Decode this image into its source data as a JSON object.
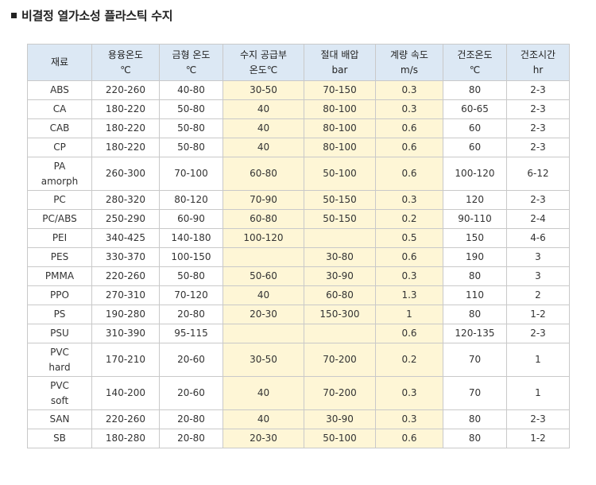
{
  "title": "비결정 열가소성 플라스틱 수지",
  "highlight_color": "#fef6d6",
  "header_color": "#dce8f4",
  "headers": [
    [
      "재료"
    ],
    [
      "용융온도",
      "℃"
    ],
    [
      "금형 온도",
      "℃"
    ],
    [
      "수지 공급부",
      "온도℃"
    ],
    [
      "절대 배압",
      "bar"
    ],
    [
      "계량 속도",
      "m/s"
    ],
    [
      "건조온도",
      "℃"
    ],
    [
      "건조시간",
      "hr"
    ]
  ],
  "rows": [
    [
      [
        "ABS"
      ],
      "220-260",
      "40-80",
      "30-50",
      "70-150",
      "0.3",
      "80",
      "2-3"
    ],
    [
      [
        "CA"
      ],
      "180-220",
      "50-80",
      "40",
      "80-100",
      "0.3",
      "60-65",
      "2-3"
    ],
    [
      [
        "CAB"
      ],
      "180-220",
      "50-80",
      "40",
      "80-100",
      "0.6",
      "60",
      "2-3"
    ],
    [
      [
        "CP"
      ],
      "180-220",
      "50-80",
      "40",
      "80-100",
      "0.6",
      "60",
      "2-3"
    ],
    [
      [
        "PA",
        "amorph"
      ],
      "260-300",
      "70-100",
      "60-80",
      "50-100",
      "0.6",
      "100-120",
      "6-12"
    ],
    [
      [
        "PC"
      ],
      "280-320",
      "80-120",
      "70-90",
      "50-150",
      "0.3",
      "120",
      "2-3"
    ],
    [
      [
        "PC/ABS"
      ],
      "250-290",
      "60-90",
      "60-80",
      "50-150",
      "0.2",
      "90-110",
      "2-4"
    ],
    [
      [
        "PEI"
      ],
      "340-425",
      "140-180",
      "100-120",
      "",
      "0.5",
      "150",
      "4-6"
    ],
    [
      [
        "PES"
      ],
      "330-370",
      "100-150",
      "",
      "30-80",
      "0.6",
      "190",
      "3"
    ],
    [
      [
        "PMMA"
      ],
      "220-260",
      "50-80",
      "50-60",
      "30-90",
      "0.3",
      "80",
      "3"
    ],
    [
      [
        "PPO"
      ],
      "270-310",
      "70-120",
      "40",
      "60-80",
      "1.3",
      "110",
      "2"
    ],
    [
      [
        "PS"
      ],
      "190-280",
      "20-80",
      "20-30",
      "150-300",
      "1",
      "80",
      "1-2"
    ],
    [
      [
        "PSU"
      ],
      "310-390",
      "95-115",
      "",
      "",
      "0.6",
      "120-135",
      "2-3"
    ],
    [
      [
        "PVC",
        "hard"
      ],
      "170-210",
      "20-60",
      "30-50",
      "70-200",
      "0.2",
      "70",
      "1"
    ],
    [
      [
        "PVC",
        "soft"
      ],
      "140-200",
      "20-60",
      "40",
      "70-200",
      "0.3",
      "70",
      "1"
    ],
    [
      [
        "SAN"
      ],
      "220-260",
      "20-80",
      "40",
      "30-90",
      "0.3",
      "80",
      "2-3"
    ],
    [
      [
        "SB"
      ],
      "180-280",
      "20-80",
      "20-30",
      "50-100",
      "0.6",
      "80",
      "1-2"
    ]
  ]
}
